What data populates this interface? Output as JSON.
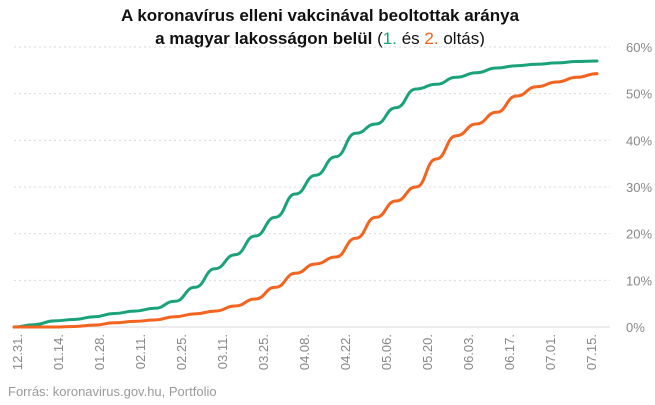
{
  "title": {
    "line1": "A koronavírus elleni vakcinával beoltottak aránya",
    "line2_prefix": "a magyar lakosságon belül",
    "paren_open": "(",
    "first_label": "1.",
    "connector": "és",
    "second_label": "2.",
    "suffix": "oltás)"
  },
  "source": "Forrás: koronavirus.gov.hu, Portfolio",
  "colors": {
    "first_dose": "#1aa37a",
    "second_dose": "#f2641f",
    "grid": "#d9d9d9",
    "axis_text": "#888888"
  },
  "chart_data": {
    "type": "line",
    "title": "A koronavírus elleni vakcinával beoltottak aránya a magyar lakosságon belül (1. és 2. oltás)",
    "x_ticks": [
      "12.31.",
      "01.14.",
      "01.28.",
      "02.11.",
      "02.25.",
      "03.11.",
      "03.25.",
      "04.08.",
      "04.22.",
      "05.06.",
      "05.20.",
      "06.03.",
      "06.17.",
      "07.01.",
      "07.15."
    ],
    "y_ticks": [
      "0%",
      "10%",
      "20%",
      "30%",
      "40%",
      "50%",
      "60%"
    ],
    "ylim": [
      0,
      60
    ],
    "grid": true,
    "x": [
      "12.31.",
      "01.07.",
      "01.14.",
      "01.21.",
      "01.28.",
      "02.04.",
      "02.11.",
      "02.18.",
      "02.25.",
      "03.04.",
      "03.11.",
      "03.18.",
      "03.25.",
      "04.01.",
      "04.08.",
      "04.15.",
      "04.22.",
      "04.29.",
      "05.06.",
      "05.13.",
      "05.20.",
      "05.27.",
      "06.03.",
      "06.10.",
      "06.17.",
      "06.24.",
      "07.01.",
      "07.08.",
      "07.15.",
      "07.20."
    ],
    "series": [
      {
        "values": [
          0,
          0.5,
          1.3,
          1.6,
          2.2,
          2.9,
          3.4,
          4.0,
          5.5,
          8.5,
          12.5,
          15.5,
          19.5,
          23.5,
          28.5,
          32.5,
          36.5,
          41.5,
          43.5,
          47.0,
          51.0,
          52.0,
          53.5,
          54.5,
          55.5,
          56.0,
          56.3,
          56.6,
          56.9,
          57.0
        ]
      },
      {
        "values": [
          0,
          0,
          0,
          0.1,
          0.4,
          0.9,
          1.2,
          1.5,
          2.2,
          2.8,
          3.4,
          4.5,
          6.0,
          8.5,
          11.5,
          13.5,
          15.0,
          19.0,
          23.5,
          27.0,
          30.0,
          36.0,
          41.0,
          43.5,
          46.0,
          49.5,
          51.5,
          52.5,
          53.5,
          54.3
        ]
      }
    ]
  }
}
